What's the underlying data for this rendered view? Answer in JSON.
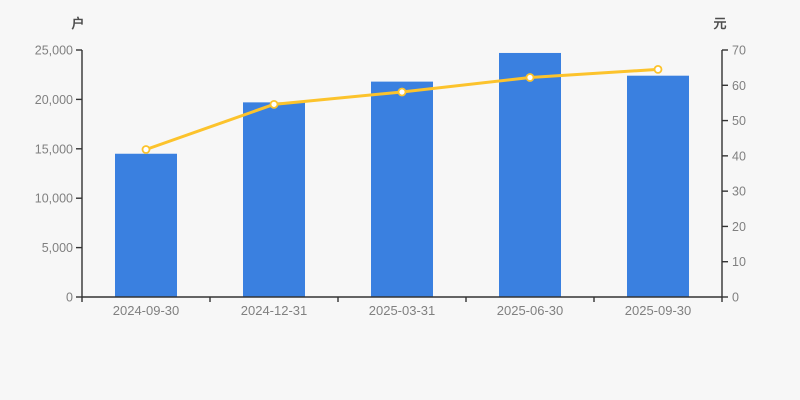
{
  "chart_data": {
    "type": "bar",
    "categories": [
      "2024-09-30",
      "2024-12-31",
      "2025-03-31",
      "2025-06-30",
      "2025-09-30"
    ],
    "series": [
      {
        "type": "bar",
        "axis": "left",
        "values": [
          14500,
          19700,
          21800,
          24700,
          22400
        ],
        "color": "#3a80e0"
      },
      {
        "type": "line",
        "axis": "right",
        "values": [
          41.8,
          54.6,
          58.1,
          62.2,
          64.5
        ],
        "color": "#fcc32c",
        "point_fill": "#ffffff"
      }
    ],
    "left_axis": {
      "unit_label": "户",
      "min": 0,
      "max": 25000,
      "tick_step": 5000,
      "tick_labels": [
        "0",
        "5,000",
        "10,000",
        "15,000",
        "20,000",
        "25,000"
      ]
    },
    "right_axis": {
      "unit_label": "元",
      "min": 0,
      "max": 70,
      "tick_step": 10,
      "tick_labels": [
        "0",
        "10",
        "20",
        "30",
        "40",
        "50",
        "60",
        "70"
      ]
    },
    "layout_hints": {
      "grid": false,
      "legend": false,
      "background_color": "#f7f7f7",
      "axis_color": "#333333",
      "tick_label_color": "#808080",
      "unit_label_color": "#4d4d4d"
    }
  }
}
